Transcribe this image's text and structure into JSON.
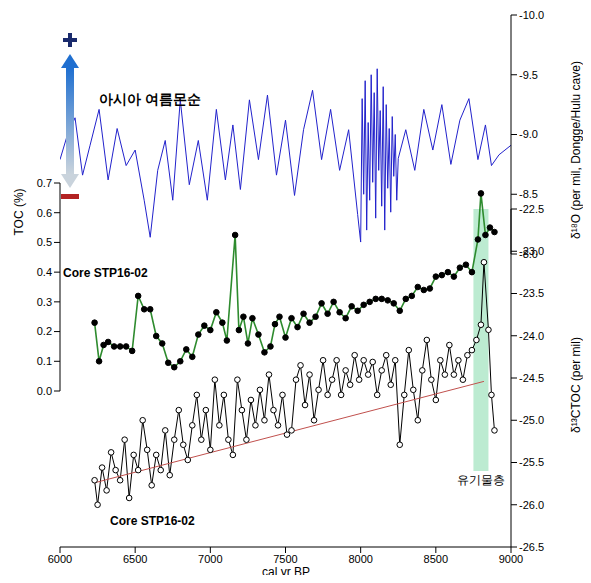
{
  "chart_data": [
    {
      "type": "line",
      "ylabel": "δ¹⁸O (per mil, Dongge/Hulu cave)",
      "annotations": [
        {
          "text": "아시아 여름몬순"
        }
      ],
      "xlim": [
        6000,
        9000
      ],
      "ylim": [
        -8,
        -10
      ],
      "yticks": [
        {
          "value": -10,
          "label": "-10.0"
        },
        -9.5,
        {
          "value": -9,
          "label": "-9.0"
        },
        -8.5,
        {
          "value": -8,
          "label": "-8.0"
        }
      ],
      "tick_labels": "y",
      "series": [
        {
          "color": "#2222cc",
          "line_style": "solid",
          "x": [
            6000,
            6050,
            6100,
            6150,
            6200,
            6260,
            6320,
            6380,
            6440,
            6500,
            6560,
            6600,
            6650,
            6700,
            6750,
            6800,
            6860,
            6920,
            6980,
            7040,
            7100,
            7150,
            7200,
            7260,
            7320,
            7380,
            7440,
            7500,
            7560,
            7620,
            7680,
            7740,
            7800,
            7860,
            7920,
            7980,
            8000,
            8010,
            8020,
            8030,
            8040,
            8050,
            8060,
            8070,
            8080,
            8090,
            8100,
            8110,
            8120,
            8130,
            8140,
            8150,
            8160,
            8170,
            8180,
            8190,
            8200,
            8210,
            8220,
            8230,
            8240,
            8250,
            8300,
            8360,
            8420,
            8480,
            8540,
            8600,
            8660,
            8720,
            8780,
            8830,
            8870,
            8920,
            8960,
            9000
          ],
          "values": [
            -8.79,
            -9.0,
            -9.14,
            -8.66,
            -8.91,
            -9.21,
            -8.62,
            -9.05,
            -8.74,
            -8.87,
            -8.45,
            -8.14,
            -8.7,
            -8.95,
            -8.45,
            -9.29,
            -8.58,
            -8.95,
            -8.45,
            -9.21,
            -8.62,
            -9.08,
            -8.54,
            -9.29,
            -8.79,
            -9.33,
            -8.66,
            -9.12,
            -8.49,
            -9.04,
            -9.37,
            -8.79,
            -9.21,
            -8.7,
            -9.04,
            -8.33,
            -8.1,
            -9.3,
            -8.5,
            -9.45,
            -8.2,
            -9.1,
            -8.45,
            -9.5,
            -8.6,
            -9.35,
            -8.3,
            -9.55,
            -8.7,
            -9.2,
            -8.4,
            -9.4,
            -8.2,
            -9.25,
            -8.55,
            -9.05,
            -8.35,
            -9.15,
            -8.65,
            -9.0,
            -8.45,
            -8.8,
            -9.04,
            -8.7,
            -9.21,
            -8.87,
            -9.25,
            -8.75,
            -9.12,
            -9.3,
            -8.79,
            -9.08,
            -8.74,
            -8.83,
            -8.87,
            -8.91
          ]
        }
      ]
    },
    {
      "type": "line",
      "ylabel": "TOC (%)",
      "annotations": [
        {
          "text": "Core STP16-02"
        }
      ],
      "xlim": [
        6000,
        9000
      ],
      "ylim": [
        0,
        0.7
      ],
      "yticks": [
        {
          "value": 0,
          "label": "0.0"
        },
        0.1,
        0.2,
        0.3,
        0.4,
        0.5,
        0.6,
        0.7
      ],
      "tick_labels": "y",
      "series": [
        {
          "color": "#2e8b2e",
          "marker": "circle",
          "line_style": "solid",
          "x": [
            6230,
            6260,
            6290,
            6320,
            6360,
            6400,
            6440,
            6480,
            6520,
            6560,
            6600,
            6640,
            6680,
            6720,
            6760,
            6800,
            6840,
            6880,
            6920,
            6960,
            7000,
            7040,
            7080,
            7110,
            7165,
            7190,
            7220,
            7250,
            7280,
            7320,
            7360,
            7400,
            7430,
            7460,
            7500,
            7540,
            7580,
            7620,
            7660,
            7700,
            7740,
            7780,
            7820,
            7860,
            7900,
            7940,
            7980,
            8020,
            8060,
            8100,
            8140,
            8180,
            8220,
            8260,
            8300,
            8340,
            8380,
            8420,
            8460,
            8500,
            8540,
            8580,
            8620,
            8660,
            8700,
            8740,
            8780,
            8800,
            8830,
            8860,
            8890
          ],
          "values": [
            0.23,
            0.1,
            0.155,
            0.165,
            0.15,
            0.15,
            0.15,
            0.135,
            0.32,
            0.275,
            0.275,
            0.185,
            0.16,
            0.095,
            0.08,
            0.1,
            0.14,
            0.115,
            0.19,
            0.22,
            0.205,
            0.265,
            0.23,
            0.17,
            0.525,
            0.205,
            0.25,
            0.16,
            0.245,
            0.19,
            0.13,
            0.15,
            0.225,
            0.25,
            0.18,
            0.245,
            0.215,
            0.26,
            0.23,
            0.25,
            0.295,
            0.26,
            0.3,
            0.265,
            0.245,
            0.285,
            0.27,
            0.29,
            0.3,
            0.31,
            0.31,
            0.305,
            0.295,
            0.27,
            0.31,
            0.32,
            0.35,
            0.34,
            0.345,
            0.385,
            0.39,
            0.4,
            0.385,
            0.415,
            0.425,
            0.4,
            0.51,
            0.665,
            0.525,
            0.55,
            0.535
          ]
        }
      ]
    },
    {
      "type": "line",
      "ylabel": "δ¹³CTOC (per mil)",
      "xlabel": "cal yr BP",
      "annotations": [
        {
          "text": "Core STP16-02"
        },
        {
          "text": "유기물층",
          "x1": 8750,
          "x2": 8850,
          "y1": -25.6,
          "y2": -22.5
        }
      ],
      "xlim": [
        6000,
        9000
      ],
      "xticks": [
        6000,
        6500,
        7000,
        7500,
        8000,
        8500,
        9000
      ],
      "ylim": [
        -26.5,
        -22.5
      ],
      "yticks": [
        -22.5,
        {
          "value": -23,
          "label": "-23.0"
        },
        -23.5,
        {
          "value": -24,
          "label": "-24.0"
        },
        -24.5,
        {
          "value": -25,
          "label": "-25.0"
        },
        -25.5,
        {
          "value": -26,
          "label": "-26.0"
        },
        -26.5
      ],
      "series": [
        {
          "color": "#000000",
          "marker": "open-circle",
          "line_style": "solid",
          "x": [
            6230,
            6250,
            6280,
            6310,
            6340,
            6370,
            6400,
            6430,
            6460,
            6490,
            6520,
            6550,
            6580,
            6610,
            6640,
            6670,
            6700,
            6730,
            6760,
            6790,
            6820,
            6850,
            6880,
            6910,
            6940,
            6970,
            7000,
            7030,
            7060,
            7090,
            7120,
            7150,
            7180,
            7210,
            7240,
            7270,
            7300,
            7330,
            7360,
            7390,
            7420,
            7450,
            7480,
            7510,
            7540,
            7570,
            7600,
            7630,
            7660,
            7690,
            7720,
            7750,
            7780,
            7810,
            7840,
            7870,
            7900,
            7930,
            7960,
            7990,
            8020,
            8050,
            8080,
            8110,
            8140,
            8170,
            8200,
            8230,
            8260,
            8290,
            8320,
            8350,
            8380,
            8410,
            8440,
            8470,
            8500,
            8530,
            8560,
            8590,
            8620,
            8650,
            8680,
            8710,
            8740,
            8770,
            8800,
            8820,
            8850,
            8870,
            8890
          ],
          "values": [
            -25.71,
            -26.0,
            -25.56,
            -25.83,
            -25.38,
            -25.59,
            -25.71,
            -25.23,
            -25.92,
            -25.41,
            -25.59,
            -25.0,
            -25.35,
            -25.77,
            -25.41,
            -25.59,
            -25.12,
            -25.65,
            -25.23,
            -24.88,
            -25.29,
            -25.47,
            -25.06,
            -24.7,
            -25.23,
            -24.88,
            -25.35,
            -24.52,
            -25.06,
            -24.7,
            -25.23,
            -25.41,
            -24.52,
            -24.88,
            -25.23,
            -24.76,
            -25.06,
            -24.64,
            -25.0,
            -24.46,
            -24.88,
            -25.06,
            -24.7,
            -25.17,
            -25.12,
            -24.52,
            -24.35,
            -24.82,
            -24.46,
            -25.0,
            -24.64,
            -24.29,
            -24.7,
            -24.52,
            -24.29,
            -24.7,
            -24.41,
            -24.58,
            -24.23,
            -24.52,
            -24.29,
            -24.46,
            -24.31,
            -24.7,
            -24.41,
            -24.23,
            -24.58,
            -24.29,
            -25.29,
            -24.7,
            -24.17,
            -24.64,
            -25.0,
            -24.41,
            -24.05,
            -24.52,
            -24.76,
            -24.29,
            -24.46,
            -24.11,
            -24.46,
            -24.29,
            -24.52,
            -24.23,
            -24.17,
            -24.05,
            -23.87,
            -23.13,
            -23.93,
            -24.7,
            -25.12
          ]
        },
        {
          "color": "#c0504d",
          "line_style": "solid",
          "x": [
            6230,
            8820
          ],
          "values": [
            -25.74,
            -24.54
          ]
        }
      ]
    }
  ]
}
